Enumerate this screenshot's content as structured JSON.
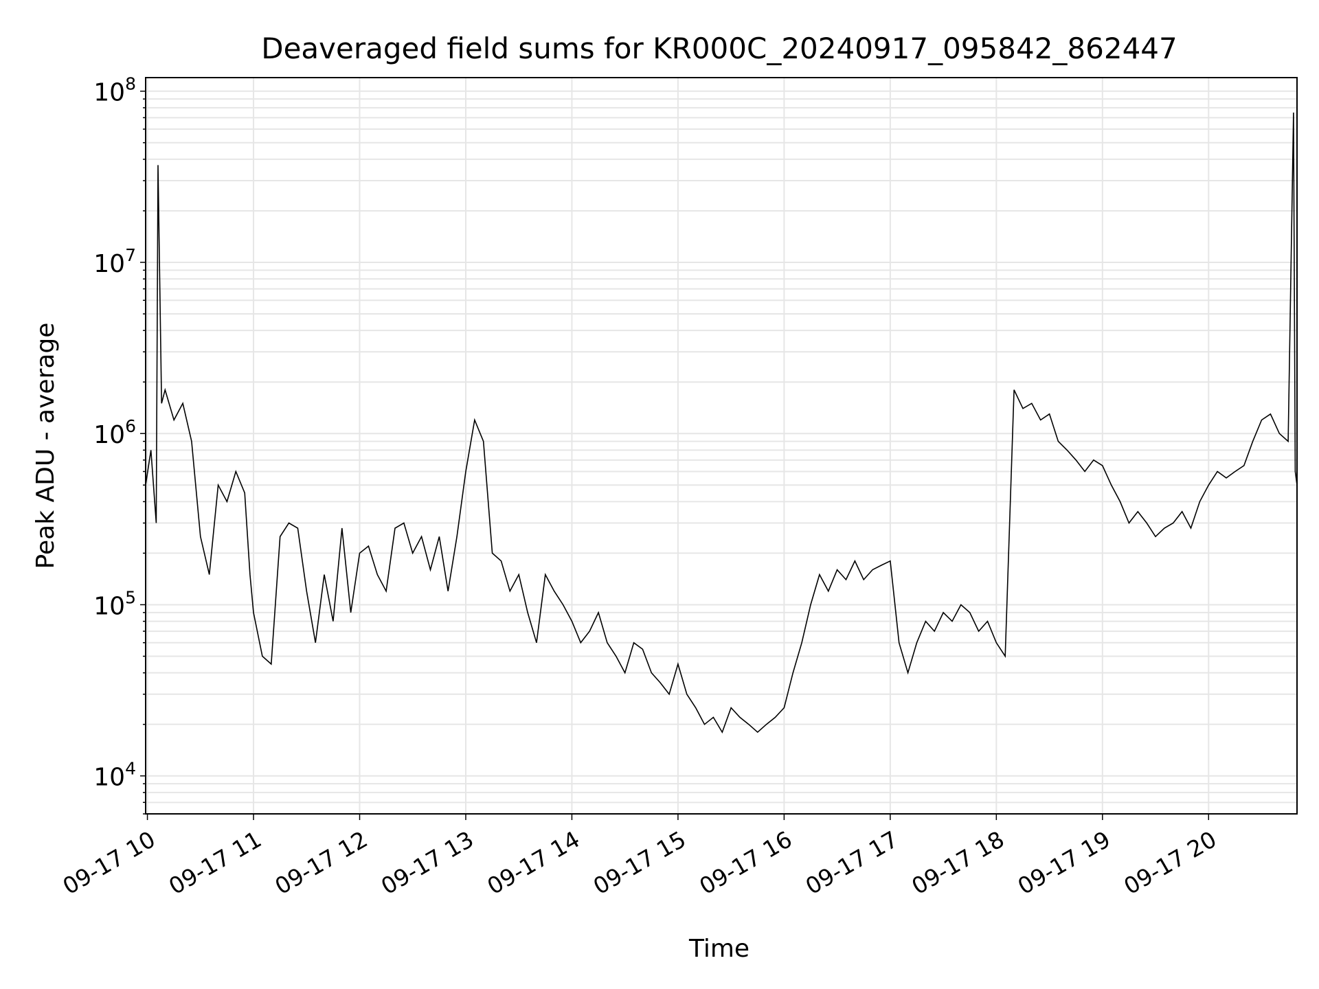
{
  "chart_data": {
    "type": "line",
    "title": "Deaveraged field sums for KR000C_20240917_095842_862447",
    "xlabel": "Time",
    "ylabel": "Peak ADU - average",
    "yscale": "log",
    "ylim": [
      6000,
      120000000
    ],
    "xlim": [
      "09-17 09:59",
      "09-17 20:50"
    ],
    "grid": true,
    "line_color": "#000000",
    "grid_color": "#e6e6e6",
    "x_ticks": [
      "09-17 10",
      "09-17 11",
      "09-17 12",
      "09-17 13",
      "09-17 14",
      "09-17 15",
      "09-17 16",
      "09-17 17",
      "09-17 18",
      "09-17 19",
      "09-17 20"
    ],
    "y_ticks": [
      {
        "base": "10",
        "exp": "4"
      },
      {
        "base": "10",
        "exp": "5"
      },
      {
        "base": "10",
        "exp": "6"
      },
      {
        "base": "10",
        "exp": "7"
      },
      {
        "base": "10",
        "exp": "8"
      }
    ],
    "series": [
      {
        "x": [
          "09-17 09:59",
          "09-17 10:02",
          "09-17 10:05",
          "09-17 10:06",
          "09-17 10:08",
          "09-17 10:10",
          "09-17 10:15",
          "09-17 10:20",
          "09-17 10:25",
          "09-17 10:30",
          "09-17 10:35",
          "09-17 10:40",
          "09-17 10:45",
          "09-17 10:50",
          "09-17 10:55",
          "09-17 10:58",
          "09-17 11:00",
          "09-17 11:05",
          "09-17 11:10",
          "09-17 11:15",
          "09-17 11:20",
          "09-17 11:25",
          "09-17 11:30",
          "09-17 11:35",
          "09-17 11:40",
          "09-17 11:45",
          "09-17 11:50",
          "09-17 11:55",
          "09-17 12:00",
          "09-17 12:05",
          "09-17 12:10",
          "09-17 12:15",
          "09-17 12:20",
          "09-17 12:25",
          "09-17 12:30",
          "09-17 12:35",
          "09-17 12:40",
          "09-17 12:45",
          "09-17 12:50",
          "09-17 12:55",
          "09-17 13:00",
          "09-17 13:05",
          "09-17 13:10",
          "09-17 13:15",
          "09-17 13:20",
          "09-17 13:25",
          "09-17 13:30",
          "09-17 13:35",
          "09-17 13:40",
          "09-17 13:45",
          "09-17 13:50",
          "09-17 13:55",
          "09-17 14:00",
          "09-17 14:05",
          "09-17 14:10",
          "09-17 14:15",
          "09-17 14:20",
          "09-17 14:25",
          "09-17 14:30",
          "09-17 14:35",
          "09-17 14:40",
          "09-17 14:45",
          "09-17 14:50",
          "09-17 14:55",
          "09-17 15:00",
          "09-17 15:05",
          "09-17 15:10",
          "09-17 15:15",
          "09-17 15:20",
          "09-17 15:25",
          "09-17 15:30",
          "09-17 15:35",
          "09-17 15:40",
          "09-17 15:45",
          "09-17 15:50",
          "09-17 15:55",
          "09-17 16:00",
          "09-17 16:05",
          "09-17 16:10",
          "09-17 16:15",
          "09-17 16:20",
          "09-17 16:25",
          "09-17 16:30",
          "09-17 16:35",
          "09-17 16:40",
          "09-17 16:45",
          "09-17 16:50",
          "09-17 16:55",
          "09-17 17:00",
          "09-17 17:05",
          "09-17 17:10",
          "09-17 17:15",
          "09-17 17:20",
          "09-17 17:25",
          "09-17 17:30",
          "09-17 17:35",
          "09-17 17:40",
          "09-17 17:45",
          "09-17 17:50",
          "09-17 17:55",
          "09-17 18:00",
          "09-17 18:05",
          "09-17 18:10",
          "09-17 18:15",
          "09-17 18:20",
          "09-17 18:25",
          "09-17 18:30",
          "09-17 18:35",
          "09-17 18:40",
          "09-17 18:45",
          "09-17 18:50",
          "09-17 18:55",
          "09-17 19:00",
          "09-17 19:05",
          "09-17 19:10",
          "09-17 19:15",
          "09-17 19:20",
          "09-17 19:25",
          "09-17 19:30",
          "09-17 19:35",
          "09-17 19:40",
          "09-17 19:45",
          "09-17 19:50",
          "09-17 19:55",
          "09-17 20:00",
          "09-17 20:05",
          "09-17 20:10",
          "09-17 20:15",
          "09-17 20:20",
          "09-17 20:25",
          "09-17 20:30",
          "09-17 20:35",
          "09-17 20:40",
          "09-17 20:45",
          "09-17 20:48",
          "09-17 20:49",
          "09-17 20:50"
        ],
        "values": [
          500000,
          800000,
          300000,
          37000000,
          1500000,
          1800000,
          1200000,
          1500000,
          900000,
          250000,
          150000,
          500000,
          400000,
          600000,
          450000,
          150000,
          90000,
          50000,
          45000,
          250000,
          300000,
          280000,
          120000,
          60000,
          150000,
          80000,
          280000,
          90000,
          200000,
          220000,
          150000,
          120000,
          280000,
          300000,
          200000,
          250000,
          160000,
          250000,
          120000,
          250000,
          600000,
          1200000,
          900000,
          200000,
          180000,
          120000,
          150000,
          90000,
          60000,
          150000,
          120000,
          100000,
          80000,
          60000,
          70000,
          90000,
          60000,
          50000,
          40000,
          60000,
          55000,
          40000,
          35000,
          30000,
          45000,
          30000,
          25000,
          20000,
          22000,
          18000,
          25000,
          22000,
          20000,
          18000,
          20000,
          22000,
          25000,
          40000,
          60000,
          100000,
          150000,
          120000,
          160000,
          140000,
          180000,
          140000,
          160000,
          170000,
          180000,
          60000,
          40000,
          60000,
          80000,
          70000,
          90000,
          80000,
          100000,
          90000,
          70000,
          80000,
          60000,
          50000,
          1800000,
          1400000,
          1500000,
          1200000,
          1300000,
          900000,
          800000,
          700000,
          600000,
          700000,
          650000,
          500000,
          400000,
          300000,
          350000,
          300000,
          250000,
          280000,
          300000,
          350000,
          280000,
          400000,
          500000,
          600000,
          550000,
          600000,
          650000,
          900000,
          1200000,
          1300000,
          1000000,
          900000,
          75000000,
          600000,
          500000
        ]
      }
    ]
  }
}
